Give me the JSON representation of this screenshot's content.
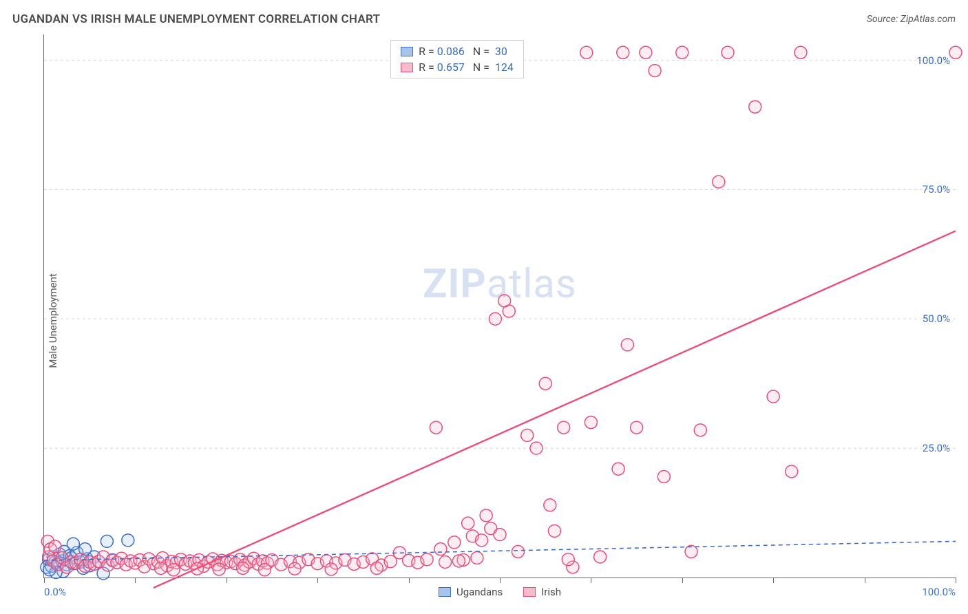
{
  "header": {
    "title": "UGANDAN VS IRISH MALE UNEMPLOYMENT CORRELATION CHART",
    "source": "Source: ZipAtlas.com"
  },
  "ylabel": "Male Unemployment",
  "watermark": {
    "bold": "ZIP",
    "light": "atlas"
  },
  "chart": {
    "type": "scatter",
    "xlim": [
      0,
      100
    ],
    "ylim": [
      0,
      105
    ],
    "background_color": "#ffffff",
    "grid_color": "#d5d5d5",
    "axis_color": "#666666",
    "tick_label_color": "#3b6fc9",
    "tick_label_fontsize": 15,
    "ytick_positions": [
      25,
      50,
      75,
      100
    ],
    "ytick_labels": [
      "25.0%",
      "50.0%",
      "75.0%",
      "100.0%"
    ],
    "xtick_positions": [
      0,
      10,
      20,
      30,
      40,
      50,
      60,
      70,
      80,
      90,
      100
    ],
    "xtick_label_left": "0.0%",
    "xtick_label_right": "100.0%",
    "marker_radius": 9,
    "marker_stroke_width": 1.5,
    "marker_fill_opacity": 0.28,
    "series": [
      {
        "name": "Ugandans",
        "color_stroke": "#3b6fc9",
        "color_fill": "#a8c4ec",
        "R": "0.086",
        "N": "30",
        "regression": {
          "x1": 0,
          "y1": 3.3,
          "x2": 100,
          "y2": 7.0,
          "dash": "6,5",
          "width": 1.6,
          "color": "#3b6fc9"
        },
        "points": [
          [
            0.3,
            2.0
          ],
          [
            0.5,
            3.5
          ],
          [
            0.8,
            2.2
          ],
          [
            1.0,
            4.0
          ],
          [
            1.2,
            3.0
          ],
          [
            1.5,
            2.8
          ],
          [
            1.7,
            4.5
          ],
          [
            2.0,
            3.2
          ],
          [
            2.2,
            5.0
          ],
          [
            2.5,
            2.5
          ],
          [
            2.8,
            4.2
          ],
          [
            3.0,
            3.8
          ],
          [
            3.3,
            2.7
          ],
          [
            3.6,
            4.8
          ],
          [
            4.0,
            3.0
          ],
          [
            4.3,
            1.8
          ],
          [
            4.7,
            3.6
          ],
          [
            5.0,
            2.3
          ],
          [
            5.5,
            4.0
          ],
          [
            6.0,
            3.1
          ],
          [
            6.5,
            0.8
          ],
          [
            6.9,
            7.0
          ],
          [
            7.5,
            3.4
          ],
          [
            8.0,
            2.9
          ],
          [
            3.2,
            6.5
          ],
          [
            2.1,
            1.2
          ],
          [
            1.3,
            1.0
          ],
          [
            0.6,
            1.5
          ],
          [
            4.5,
            5.5
          ],
          [
            9.2,
            7.2
          ]
        ]
      },
      {
        "name": "Irish",
        "color_stroke": "#e94f7a",
        "color_fill": "#f7bccb",
        "R": "0.657",
        "N": "124",
        "regression": {
          "x1": 12,
          "y1": -2,
          "x2": 100,
          "y2": 67,
          "dash": "none",
          "width": 2.4,
          "color": "#e94f7a"
        },
        "points": [
          [
            0.5,
            4.0
          ],
          [
            1.0,
            3.2
          ],
          [
            1.5,
            2.5
          ],
          [
            2.0,
            3.8
          ],
          [
            2.5,
            2.0
          ],
          [
            3.0,
            3.0
          ],
          [
            3.5,
            2.8
          ],
          [
            4.0,
            3.5
          ],
          [
            4.5,
            2.2
          ],
          [
            5.0,
            3.0
          ],
          [
            5.5,
            2.6
          ],
          [
            6.0,
            3.1
          ],
          [
            6.5,
            4.0
          ],
          [
            7.0,
            2.4
          ],
          [
            7.5,
            3.3
          ],
          [
            8.0,
            2.9
          ],
          [
            8.5,
            3.7
          ],
          [
            9.0,
            2.5
          ],
          [
            9.5,
            3.2
          ],
          [
            10.0,
            2.8
          ],
          [
            10.5,
            3.4
          ],
          [
            11.0,
            2.1
          ],
          [
            11.5,
            3.6
          ],
          [
            12.0,
            2.7
          ],
          [
            12.5,
            3.0
          ],
          [
            13.0,
            3.8
          ],
          [
            13.5,
            2.3
          ],
          [
            14.0,
            3.1
          ],
          [
            14.5,
            2.9
          ],
          [
            15.0,
            3.5
          ],
          [
            15.5,
            2.6
          ],
          [
            16.0,
            3.2
          ],
          [
            16.5,
            2.8
          ],
          [
            17.0,
            3.4
          ],
          [
            17.5,
            2.2
          ],
          [
            18.0,
            3.0
          ],
          [
            18.5,
            3.6
          ],
          [
            19.0,
            2.5
          ],
          [
            19.5,
            3.3
          ],
          [
            20.0,
            2.9
          ],
          [
            20.5,
            3.1
          ],
          [
            21.0,
            2.7
          ],
          [
            21.5,
            3.5
          ],
          [
            22.0,
            2.4
          ],
          [
            22.5,
            3.0
          ],
          [
            23.0,
            3.7
          ],
          [
            23.5,
            2.6
          ],
          [
            24.0,
            3.2
          ],
          [
            24.5,
            2.8
          ],
          [
            25.0,
            3.4
          ],
          [
            26.0,
            2.5
          ],
          [
            27.0,
            3.1
          ],
          [
            28.0,
            2.9
          ],
          [
            29.0,
            3.5
          ],
          [
            30.0,
            2.7
          ],
          [
            31.0,
            3.2
          ],
          [
            32.0,
            2.8
          ],
          [
            33.0,
            3.4
          ],
          [
            34.0,
            2.6
          ],
          [
            35.0,
            3.0
          ],
          [
            36.0,
            3.6
          ],
          [
            37.0,
            2.4
          ],
          [
            38.0,
            3.1
          ],
          [
            39.0,
            4.8
          ],
          [
            40.0,
            3.3
          ],
          [
            41.0,
            2.9
          ],
          [
            42.0,
            3.5
          ],
          [
            43.5,
            5.5
          ],
          [
            44.0,
            3.0
          ],
          [
            45.0,
            6.8
          ],
          [
            46.0,
            3.4
          ],
          [
            47.0,
            8.0
          ],
          [
            48.0,
            7.2
          ],
          [
            49.0,
            9.5
          ],
          [
            50.0,
            8.3
          ],
          [
            43.0,
            29.0
          ],
          [
            46.5,
            10.5
          ],
          [
            48.5,
            12.0
          ],
          [
            49.5,
            50.0
          ],
          [
            51.0,
            51.5
          ],
          [
            50.5,
            53.5
          ],
          [
            52.0,
            5.0
          ],
          [
            53.0,
            27.5
          ],
          [
            54.0,
            25.0
          ],
          [
            55.0,
            37.5
          ],
          [
            56.0,
            9.0
          ],
          [
            57.0,
            29.0
          ],
          [
            58.0,
            2.0
          ],
          [
            59.5,
            101.5
          ],
          [
            60.0,
            30.0
          ],
          [
            61.0,
            4.0
          ],
          [
            63.0,
            21.0
          ],
          [
            64.0,
            45.0
          ],
          [
            65.0,
            29.0
          ],
          [
            66.0,
            101.5
          ],
          [
            67.0,
            98.0
          ],
          [
            68.0,
            19.5
          ],
          [
            70.0,
            101.5
          ],
          [
            72.0,
            28.5
          ],
          [
            74.0,
            76.5
          ],
          [
            75.0,
            101.5
          ],
          [
            78.0,
            91.0
          ],
          [
            80.0,
            35.0
          ],
          [
            82.0,
            20.5
          ],
          [
            83.0,
            101.5
          ],
          [
            63.5,
            101.5
          ],
          [
            0.4,
            7.0
          ],
          [
            0.7,
            5.5
          ],
          [
            1.2,
            6.0
          ],
          [
            12.8,
            1.8
          ],
          [
            14.2,
            1.5
          ],
          [
            16.8,
            1.7
          ],
          [
            19.2,
            1.6
          ],
          [
            21.8,
            1.8
          ],
          [
            24.2,
            1.5
          ],
          [
            27.5,
            1.7
          ],
          [
            31.5,
            1.6
          ],
          [
            36.5,
            1.8
          ],
          [
            47.5,
            3.8
          ],
          [
            55.5,
            14.0
          ],
          [
            57.5,
            3.5
          ],
          [
            71.0,
            5.0
          ],
          [
            100.0,
            101.5
          ],
          [
            45.5,
            3.2
          ]
        ]
      }
    ],
    "bottom_legend": {
      "items": [
        {
          "label": "Ugandans",
          "swatch_fill": "#a8c4ec",
          "swatch_stroke": "#3b6fc9"
        },
        {
          "label": "Irish",
          "swatch_fill": "#f7bccb",
          "swatch_stroke": "#e94f7a"
        }
      ]
    },
    "stats_legend": {
      "r_label": "R =",
      "n_label": "N ="
    }
  }
}
